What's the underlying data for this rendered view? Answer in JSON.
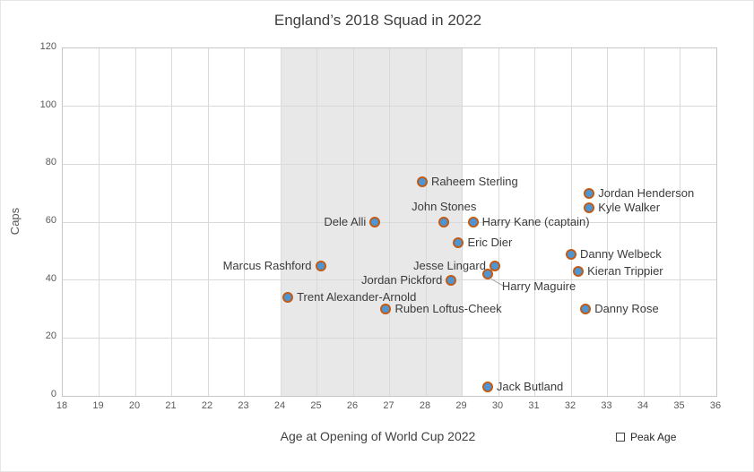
{
  "chart_data": {
    "type": "scatter",
    "title": "England’s 2018 Squad in 2022",
    "xlabel": "Age at Opening of World Cup 2022",
    "ylabel": "Caps",
    "xlim": [
      18,
      36
    ],
    "ylim": [
      0,
      120
    ],
    "x_ticks": [
      18,
      19,
      20,
      21,
      22,
      23,
      24,
      25,
      26,
      27,
      28,
      29,
      30,
      31,
      32,
      33,
      34,
      35,
      36
    ],
    "y_ticks": [
      0,
      20,
      40,
      60,
      80,
      100,
      120
    ],
    "grid": true,
    "legend": {
      "label": "Peak Age",
      "position": "bottom-right"
    },
    "band": {
      "name": "Peak Age",
      "x_from": 24,
      "x_to": 29
    },
    "marker_colors": {
      "fill": "#4e96d3",
      "stroke": "#bf5b17"
    },
    "points": [
      {
        "name": "Raheem Sterling",
        "age": 27.9,
        "caps": 74,
        "label_side": "right"
      },
      {
        "name": "Jordan Henderson",
        "age": 32.5,
        "caps": 70,
        "label_side": "right"
      },
      {
        "name": "Kyle Walker",
        "age": 32.5,
        "caps": 65,
        "label_side": "right"
      },
      {
        "name": "John Stones",
        "age": 28.5,
        "caps": 60,
        "label_side": "above"
      },
      {
        "name": "Dele Alli",
        "age": 26.6,
        "caps": 60,
        "label_side": "left"
      },
      {
        "name": "Harry Kane (captain)",
        "age": 29.3,
        "caps": 60,
        "label_side": "right"
      },
      {
        "name": "Eric Dier",
        "age": 28.9,
        "caps": 53,
        "label_side": "right"
      },
      {
        "name": "Danny Welbeck",
        "age": 32.0,
        "caps": 49,
        "label_side": "right"
      },
      {
        "name": "Jesse Lingard",
        "age": 29.9,
        "caps": 45,
        "label_side": "left"
      },
      {
        "name": "Marcus Rashford",
        "age": 25.1,
        "caps": 45,
        "label_side": "left"
      },
      {
        "name": "Kieran Trippier",
        "age": 32.2,
        "caps": 43,
        "label_side": "right"
      },
      {
        "name": "Harry Maguire",
        "age": 29.7,
        "caps": 42,
        "label_side": "below-right",
        "connector": true
      },
      {
        "name": "Jordan Pickford",
        "age": 28.7,
        "caps": 40,
        "label_side": "left"
      },
      {
        "name": "Trent Alexander-Arnold",
        "age": 24.2,
        "caps": 34,
        "label_side": "right"
      },
      {
        "name": "Ruben Loftus-Cheek",
        "age": 26.9,
        "caps": 30,
        "label_side": "right"
      },
      {
        "name": "Danny Rose",
        "age": 32.4,
        "caps": 30,
        "label_side": "right"
      },
      {
        "name": "Jack Butland",
        "age": 29.7,
        "caps": 3,
        "label_side": "right"
      }
    ]
  }
}
